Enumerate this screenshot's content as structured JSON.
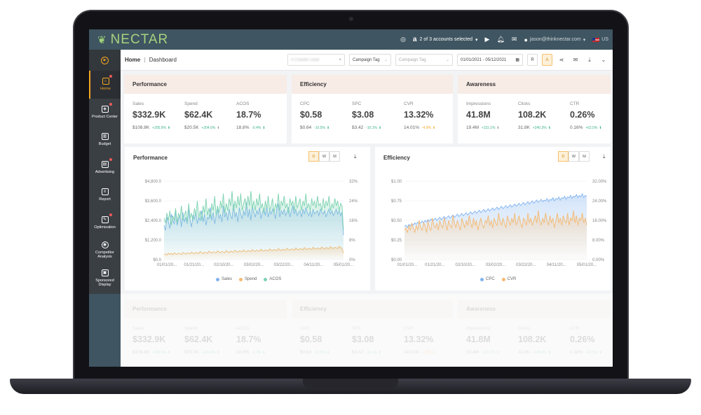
{
  "app": {
    "brand": "NECTAR"
  },
  "topbar": {
    "accounts_label": "2 of 3 accounts selected",
    "user_email": "jason@thinknectar.com",
    "region": "US"
  },
  "sidebar": {
    "items": [
      {
        "label": "Home",
        "icon": "home-icon",
        "active": true,
        "badge": true
      },
      {
        "label": "Product Center",
        "icon": "cube-icon",
        "active": false,
        "badge": true
      },
      {
        "label": "Budget",
        "icon": "budget-icon",
        "active": false,
        "badge": false
      },
      {
        "label": "Advertising",
        "icon": "ad-icon",
        "active": false,
        "badge": true
      },
      {
        "label": "Report",
        "icon": "report-icon",
        "active": false,
        "badge": false
      },
      {
        "label": "Optimization",
        "icon": "optimization-icon",
        "active": false,
        "badge": true
      },
      {
        "label": "Competitor Analysis",
        "icon": "competitor-icon",
        "active": false,
        "badge": false
      },
      {
        "label": "Sponsored Display",
        "icon": "display-icon",
        "active": false,
        "badge": false
      }
    ]
  },
  "header": {
    "crumb_home": "Home",
    "crumb_sep": "|",
    "crumb_page": "Dashboard",
    "profile_value": "A Chaotic Gear",
    "campaign_tag_label": "Campaign Tag",
    "campaign_tag_placeholder": "Campaign Tag",
    "date_range": "01/01/2021 - 05/12/2021",
    "btn_r": "R",
    "btn_a": "A"
  },
  "cards": {
    "performance": {
      "title": "Performance",
      "metrics": [
        {
          "label": "Sales",
          "value": "$332.9K",
          "prev": "$108.8K",
          "change": "+205.9%",
          "dir": "up"
        },
        {
          "label": "Spend",
          "value": "$62.4K",
          "prev": "$20.5K",
          "change": "+204.6%",
          "dir": "up-gray"
        },
        {
          "label": "ACOS",
          "value": "18.7%",
          "prev": "18.8%",
          "change": "-0.4%",
          "dir": "down"
        }
      ]
    },
    "efficiency": {
      "title": "Efficiency",
      "metrics": [
        {
          "label": "CPC",
          "value": "$0.58",
          "prev": "$0.64",
          "change": "-10.5%",
          "dir": "down"
        },
        {
          "label": "SPC",
          "value": "$3.08",
          "prev": "$3.42",
          "change": "-10.1%",
          "dir": "down"
        },
        {
          "label": "CVR",
          "value": "13.32%",
          "prev": "14.01%",
          "change": "-4.9%",
          "dir": "warn"
        }
      ]
    },
    "awareness": {
      "title": "Awareness",
      "metrics": [
        {
          "label": "Impressions",
          "value": "41.8M",
          "prev": "19.4M",
          "change": "+115.1%",
          "dir": "up-gray"
        },
        {
          "label": "Clicks",
          "value": "108.2K",
          "prev": "31.8K",
          "change": "+240.3%",
          "dir": "up"
        },
        {
          "label": "CTR",
          "value": "0.26%",
          "prev": "0.16%",
          "change": "+62.5%",
          "dir": "up"
        }
      ]
    }
  },
  "charts": {
    "granularity": [
      "D",
      "W",
      "M"
    ],
    "active_granularity": "D"
  },
  "chart_data": [
    {
      "type": "area",
      "title": "Performance",
      "x_ticks": [
        "01/01/20...",
        "01/21/20...",
        "02/10/20...",
        "03/02/20...",
        "03/22/20...",
        "04/11/20...",
        "05/01/20..."
      ],
      "y_left_ticks": [
        "$4,800.0",
        "$3,600.0",
        "$2,400.0",
        "$1,200.0",
        "$0.0"
      ],
      "y_right_ticks": [
        "32%",
        "24%",
        "16%",
        "8%",
        "0%"
      ],
      "ylim_left": [
        0,
        4800
      ],
      "ylim_right": [
        0,
        32
      ],
      "series": [
        {
          "name": "Sales",
          "axis": "left",
          "color": "#7fb2f0",
          "values": [
            2100,
            1800,
            2600,
            2300,
            1900,
            2800,
            2400,
            2200,
            3000,
            2100,
            2500,
            2700,
            2000,
            2900,
            2300,
            2600,
            2200,
            3100,
            2400,
            2000,
            2700,
            2500,
            2900,
            2200,
            2600,
            2400,
            3000,
            2300,
            2800,
            2100,
            2600,
            2500,
            3200,
            2400,
            2900,
            2200,
            2700,
            3100,
            2500,
            2800,
            2300,
            3300,
            2600,
            2900,
            2400,
            3100,
            2700,
            2500,
            3400,
            2600,
            2900,
            2300,
            3200,
            2800,
            2500,
            3000,
            2700,
            3500,
            2600,
            3100,
            2400,
            3300,
            2900,
            2600,
            3000,
            2800,
            3200,
            2500,
            2900,
            3100,
            2700,
            3300,
            2600,
            3000,
            2800,
            3100,
            2900,
            2500,
            3200,
            3400,
            2600,
            3000,
            2800,
            3100,
            2700,
            2900,
            3200,
            2600,
            3000,
            3300,
            2800,
            3100,
            2700,
            2900,
            3000,
            2600,
            3100,
            2800,
            3200,
            2900,
            2700,
            3000,
            2600,
            3100,
            2800,
            2900,
            3000,
            2700,
            3100,
            2900,
            2800,
            3000,
            2600,
            2900,
            3100,
            2800,
            3000,
            2700,
            2900,
            3100,
            2800,
            3000,
            2700,
            2900,
            1500
          ]
        },
        {
          "name": "Spend",
          "axis": "left",
          "color": "#f5b971",
          "values": [
            300,
            350,
            280,
            400,
            320,
            380,
            300,
            420,
            350,
            330,
            400,
            360,
            310,
            450,
            380,
            340,
            420,
            390,
            360,
            470,
            400,
            350,
            440,
            410,
            380,
            500,
            420,
            370,
            460,
            430,
            390,
            520,
            440,
            400,
            480,
            450,
            410,
            540,
            460,
            420,
            500,
            470,
            430,
            560,
            480,
            440,
            520,
            490,
            450,
            580,
            500,
            460,
            540,
            510,
            470,
            600,
            520,
            480,
            560,
            530,
            490,
            620,
            540,
            500,
            580,
            550,
            510,
            640,
            560,
            520,
            600,
            570,
            530,
            660,
            580,
            540,
            620,
            590,
            550,
            680,
            600,
            560,
            640,
            610,
            570,
            700,
            620,
            580,
            660,
            630,
            590,
            720,
            640,
            600,
            680,
            650,
            610,
            740,
            660,
            620,
            700,
            670,
            630,
            760,
            680,
            640,
            720,
            690,
            650,
            780,
            700,
            660,
            740,
            710,
            670,
            800,
            720,
            680,
            760,
            730,
            690,
            820,
            740,
            700,
            400
          ]
        },
        {
          "name": "ACOS",
          "axis": "right",
          "color": "#7ed3b2",
          "values": [
            17,
            15,
            19,
            16,
            20,
            14,
            18,
            16,
            21,
            15,
            19,
            17,
            22,
            16,
            18,
            20,
            15,
            23,
            17,
            19,
            16,
            21,
            18,
            24,
            17,
            20,
            16,
            22,
            19,
            25,
            18,
            21,
            17,
            23,
            20,
            26,
            18,
            22,
            19,
            24,
            21,
            27,
            19,
            23,
            20,
            25,
            22,
            28,
            20,
            24,
            21,
            26,
            22,
            27,
            20,
            23,
            25,
            21,
            26,
            22,
            28,
            21,
            24,
            20,
            25,
            22,
            27,
            21,
            23,
            19,
            24,
            21,
            26,
            20,
            22,
            25,
            19,
            23,
            21,
            27,
            20,
            24,
            22,
            26,
            21,
            23,
            19,
            25,
            22,
            24,
            20,
            26,
            21,
            23,
            25,
            20,
            24,
            22,
            27,
            21,
            23,
            20,
            25,
            22,
            24,
            21,
            26,
            22,
            23,
            20,
            25,
            21,
            24,
            22,
            26,
            20,
            23,
            21,
            25,
            22,
            24,
            20,
            23,
            22,
            12
          ]
        }
      ],
      "legend": [
        "Sales",
        "Spend",
        "ACOS"
      ]
    },
    {
      "type": "area",
      "title": "Efficiency",
      "x_ticks": [
        "01/01/20...",
        "01/21/20...",
        "02/10/20...",
        "03/02/20...",
        "03/22/20...",
        "04/11/20...",
        "05/01/20..."
      ],
      "y_left_ticks": [
        "$1.00",
        "$0.75",
        "$0.50",
        "$0.25",
        "$0.00"
      ],
      "y_right_ticks": [
        "32.00%",
        "24.00%",
        "16.00%",
        "8.00%",
        "0.00%"
      ],
      "ylim_left": [
        0,
        1
      ],
      "ylim_right": [
        0,
        32
      ],
      "series": [
        {
          "name": "CPC",
          "axis": "left",
          "color": "#7fb2f0",
          "values": [
            0.42,
            0.44,
            0.41,
            0.45,
            0.43,
            0.46,
            0.44,
            0.47,
            0.45,
            0.48,
            0.46,
            0.47,
            0.49,
            0.47,
            0.5,
            0.48,
            0.51,
            0.49,
            0.52,
            0.5,
            0.51,
            0.53,
            0.5,
            0.52,
            0.54,
            0.51,
            0.53,
            0.55,
            0.52,
            0.54,
            0.56,
            0.53,
            0.55,
            0.57,
            0.54,
            0.56,
            0.58,
            0.55,
            0.57,
            0.59,
            0.56,
            0.58,
            0.6,
            0.57,
            0.59,
            0.61,
            0.58,
            0.6,
            0.62,
            0.59,
            0.61,
            0.63,
            0.6,
            0.62,
            0.64,
            0.61,
            0.63,
            0.65,
            0.62,
            0.64,
            0.66,
            0.63,
            0.65,
            0.67,
            0.64,
            0.66,
            0.68,
            0.65,
            0.67,
            0.69,
            0.66,
            0.68,
            0.7,
            0.67,
            0.69,
            0.71,
            0.68,
            0.7,
            0.72,
            0.69,
            0.71,
            0.73,
            0.7,
            0.72,
            0.74,
            0.71,
            0.73,
            0.75,
            0.72,
            0.74,
            0.76,
            0.73,
            0.75,
            0.77,
            0.74,
            0.76,
            0.75,
            0.78,
            0.74,
            0.77,
            0.76,
            0.79,
            0.75,
            0.78,
            0.77,
            0.8,
            0.76,
            0.79,
            0.78,
            0.81,
            0.77,
            0.8,
            0.79,
            0.82,
            0.78,
            0.81,
            0.8,
            0.83,
            0.79,
            0.82,
            0.8,
            0.84,
            0.79,
            0.82,
            0.81
          ]
        },
        {
          "name": "CVR",
          "axis": "right",
          "color": "#f5b971",
          "values": [
            12,
            13,
            11,
            14,
            12,
            15,
            13,
            11,
            14,
            12,
            16,
            13,
            12,
            15,
            14,
            11,
            16,
            13,
            12,
            17,
            14,
            13,
            15,
            12,
            16,
            14,
            13,
            17,
            15,
            12,
            16,
            14,
            13,
            18,
            15,
            13,
            16,
            14,
            12,
            17,
            15,
            13,
            16,
            14,
            18,
            15,
            13,
            17,
            14,
            16,
            12,
            15,
            17,
            14,
            13,
            16,
            15,
            18,
            14,
            16,
            13,
            17,
            15,
            14,
            19,
            16,
            14,
            17,
            15,
            13,
            18,
            16,
            14,
            17,
            15,
            19,
            14,
            16,
            18,
            15,
            13,
            17,
            16,
            14,
            19,
            15,
            17,
            14,
            16,
            18,
            15,
            20,
            16,
            14,
            17,
            15,
            19,
            16,
            14,
            18,
            15,
            17,
            13,
            16,
            19,
            15,
            17,
            14,
            18,
            16,
            15,
            19,
            14,
            17,
            16,
            20,
            15,
            18,
            14,
            17,
            16,
            19,
            15,
            17,
            14
          ]
        }
      ],
      "legend": [
        "CPC",
        "CVR"
      ]
    }
  ]
}
